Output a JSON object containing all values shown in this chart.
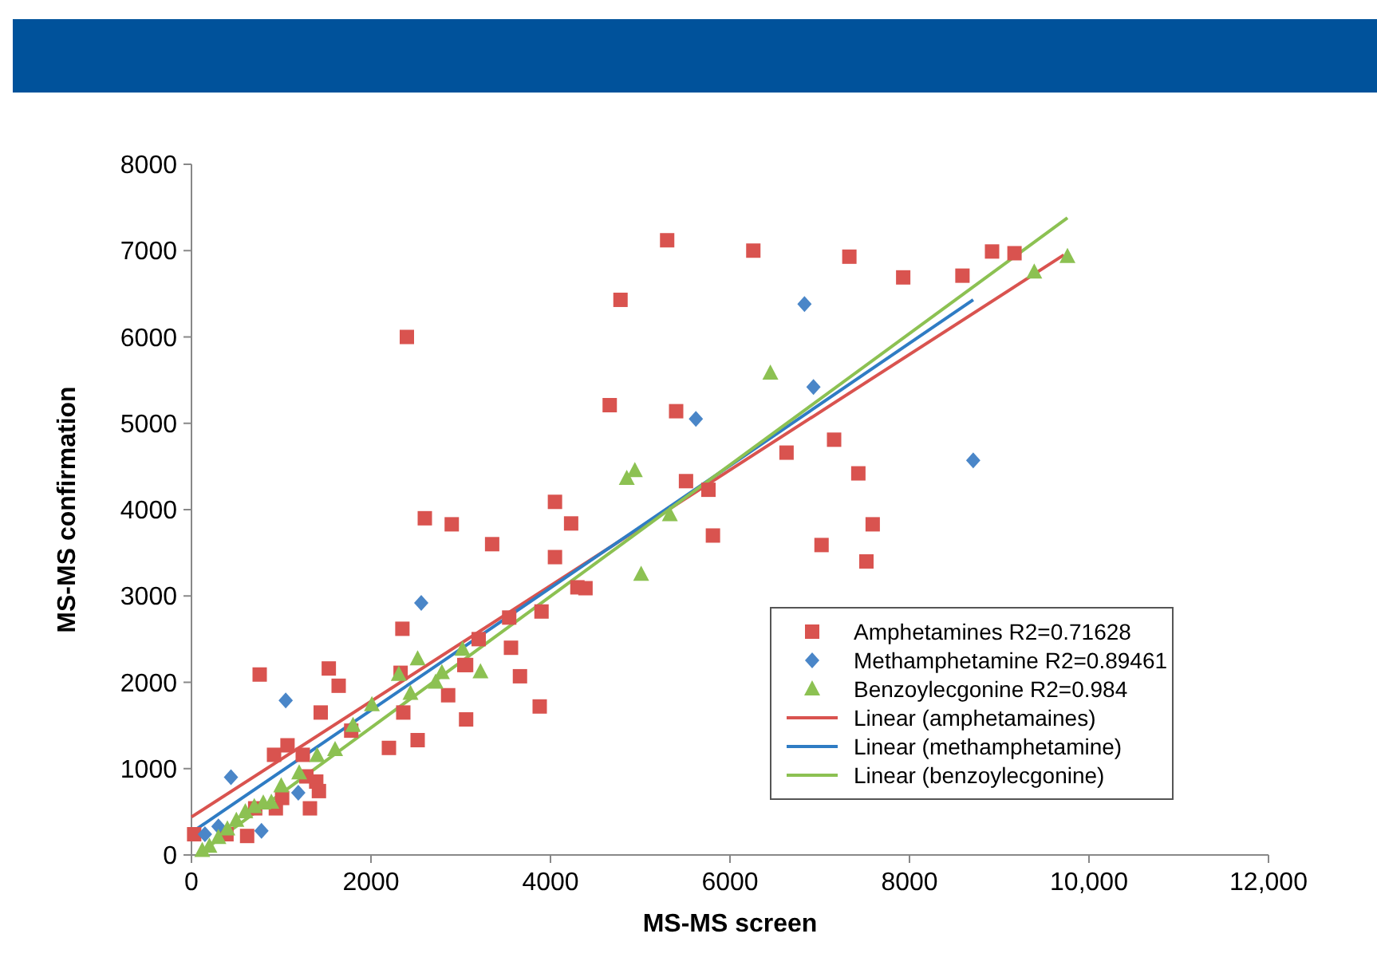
{
  "chart_data": {
    "type": "scatter",
    "xlabel": "MS-MS screen",
    "ylabel": "MS-MS confirmation",
    "xlim": [
      0,
      12000
    ],
    "ylim": [
      0,
      8000
    ],
    "xticks": [
      0,
      2000,
      4000,
      6000,
      8000,
      {
        "value": 10000,
        "label": "10,000"
      },
      {
        "value": 12000,
        "label": "12,000"
      }
    ],
    "yticks": [
      0,
      1000,
      2000,
      3000,
      4000,
      5000,
      6000,
      7000,
      8000
    ],
    "grid": false,
    "legend": "bottom right",
    "series": [
      {
        "name": "Amphetamines R2=0.71628",
        "color": "#d9534f",
        "marker": "square",
        "x": [
          2400,
          2600,
          2900,
          3350,
          4050,
          4050,
          4230,
          4300,
          4390,
          3900,
          3540,
          3560,
          3040,
          2350,
          2330,
          2360,
          1530,
          1640,
          760,
          1440,
          3060,
          2860,
          3060,
          2520,
          2200,
          3200,
          3660,
          3880,
          1780,
          920,
          1070,
          1240,
          1280,
          1390,
          1420,
          1010,
          940,
          1320,
          620,
          30,
          390,
          710,
          4660,
          5400,
          5510,
          5760,
          5810,
          5300,
          6260,
          7330,
          7930,
          8590,
          8920,
          9170,
          4780,
          6630,
          7160,
          7430,
          7590,
          7020,
          7520
        ],
        "values": [
          6000,
          3900,
          3830,
          3600,
          4090,
          3450,
          3840,
          3100,
          3090,
          2820,
          2750,
          2400,
          2200,
          2620,
          2110,
          1650,
          2160,
          1960,
          2090,
          1650,
          2200,
          1850,
          1570,
          1330,
          1240,
          2500,
          2070,
          1720,
          1440,
          1160,
          1270,
          1160,
          910,
          850,
          740,
          660,
          540,
          540,
          220,
          240,
          240,
          540,
          5210,
          5140,
          4330,
          4230,
          3700,
          7120,
          7000,
          6930,
          6690,
          6710,
          6990,
          6970,
          6430,
          4660,
          4810,
          4420,
          3830,
          3590,
          3400
        ]
      },
      {
        "name": "Methamphetamine R2=0.89461",
        "color": "#4a86c8",
        "marker": "diamond",
        "x": [
          2560,
          1050,
          440,
          1190,
          780,
          150,
          300,
          5620,
          6830,
          6930,
          8710
        ],
        "values": [
          2920,
          1790,
          900,
          720,
          280,
          240,
          330,
          5050,
          6380,
          5420,
          4570
        ]
      },
      {
        "name": "Benzoylecgonine R2=0.984",
        "color": "#8cc152",
        "marker": "triangle",
        "x": [
          2520,
          2310,
          2790,
          3220,
          2720,
          2440,
          1600,
          890,
          120,
          200,
          300,
          400,
          500,
          600,
          700,
          800,
          1000,
          1200,
          1400,
          1800,
          2010,
          3020,
          4850,
          4940,
          5010,
          5330,
          6450,
          9390,
          9760
        ],
        "values": [
          2270,
          2090,
          2110,
          2120,
          2000,
          1870,
          1220,
          610,
          50,
          100,
          200,
          300,
          400,
          500,
          560,
          600,
          800,
          950,
          1150,
          1500,
          1740,
          2380,
          4360,
          4450,
          3250,
          3940,
          5580,
          6750,
          6930
        ]
      },
      {
        "type": "line",
        "name": "Linear (amphetamaines)",
        "color": "#d9534f",
        "marker": "none",
        "x": [
          0,
          9720
        ],
        "values": [
          440,
          6950
        ]
      },
      {
        "type": "line",
        "name": "Linear (methamphetamine)",
        "color": "#2f7cc4",
        "marker": "none",
        "x": [
          0,
          8710
        ],
        "values": [
          260,
          6430
        ]
      },
      {
        "type": "line",
        "name": "Linear (benzoylecgonine)",
        "color": "#8cc152",
        "marker": "none",
        "x": [
          90,
          9760
        ],
        "values": [
          20,
          7380
        ]
      }
    ]
  }
}
